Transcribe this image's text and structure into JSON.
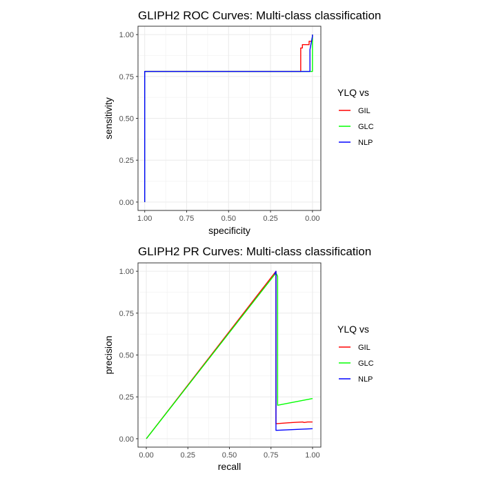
{
  "chart_data": [
    {
      "type": "line",
      "title": "GLIPH2 ROC Curves: Multi-class classification",
      "xlabel": "specificity",
      "ylabel": "sensitivity",
      "x_reversed": true,
      "xlim": [
        1.04,
        -0.05
      ],
      "ylim": [
        -0.05,
        1.05
      ],
      "xticks": [
        1.0,
        0.75,
        0.5,
        0.25,
        0.0
      ],
      "xtick_labels": [
        "1.00",
        "0.75",
        "0.50",
        "0.25",
        "0.00"
      ],
      "yticks": [
        0.0,
        0.25,
        0.5,
        0.75,
        1.0
      ],
      "ytick_labels": [
        "0.00",
        "0.25",
        "0.50",
        "0.75",
        "1.00"
      ],
      "grid": true,
      "legend": {
        "title": "YLQ vs",
        "position": "right"
      },
      "series": [
        {
          "name": "GIL",
          "color": "#ff0000",
          "points": [
            [
              1.0,
              0.0
            ],
            [
              1.0,
              0.78
            ],
            [
              0.07,
              0.78
            ],
            [
              0.07,
              0.92
            ],
            [
              0.06,
              0.92
            ],
            [
              0.06,
              0.94
            ],
            [
              0.02,
              0.94
            ],
            [
              0.02,
              0.96
            ],
            [
              0.0,
              0.96
            ],
            [
              0.0,
              1.0
            ]
          ]
        },
        {
          "name": "GLC",
          "color": "#00ff00",
          "points": [
            [
              1.0,
              0.0
            ],
            [
              1.0,
              0.78
            ],
            [
              0.0,
              0.78
            ],
            [
              0.0,
              1.0
            ]
          ]
        },
        {
          "name": "NLP",
          "color": "#0000ff",
          "points": [
            [
              1.0,
              0.0
            ],
            [
              1.0,
              0.78
            ],
            [
              0.015,
              0.78
            ],
            [
              0.015,
              0.91
            ],
            [
              0.0,
              0.99
            ],
            [
              0.0,
              1.0
            ]
          ]
        }
      ]
    },
    {
      "type": "line",
      "title": "GLIPH2 PR Curves: Multi-class classification",
      "xlabel": "recall",
      "ylabel": "precision",
      "x_reversed": false,
      "xlim": [
        -0.05,
        1.05
      ],
      "ylim": [
        -0.05,
        1.05
      ],
      "xticks": [
        0.0,
        0.25,
        0.5,
        0.75,
        1.0
      ],
      "xtick_labels": [
        "0.00",
        "0.25",
        "0.50",
        "0.75",
        "1.00"
      ],
      "yticks": [
        0.0,
        0.25,
        0.5,
        0.75,
        1.0
      ],
      "ytick_labels": [
        "0.00",
        "0.25",
        "0.50",
        "0.75",
        "1.00"
      ],
      "grid": true,
      "legend": {
        "title": "YLQ vs",
        "position": "right"
      },
      "series": [
        {
          "name": "GIL",
          "color": "#ff0000",
          "points": [
            [
              0.0,
              0.0
            ],
            [
              0.78,
              1.0
            ],
            [
              0.78,
              0.09
            ],
            [
              0.85,
              0.095
            ],
            [
              0.9,
              0.098
            ],
            [
              0.94,
              0.1
            ],
            [
              0.95,
              0.097
            ],
            [
              0.97,
              0.1
            ],
            [
              1.0,
              0.1
            ]
          ]
        },
        {
          "name": "GLC",
          "color": "#00ff00",
          "points": [
            [
              0.0,
              0.0
            ],
            [
              0.78,
              0.99
            ],
            [
              0.79,
              0.97
            ],
            [
              0.79,
              0.2
            ],
            [
              1.0,
              0.24
            ]
          ]
        },
        {
          "name": "NLP",
          "color": "#0000ff",
          "points": [
            [
              0.77,
              0.98
            ],
            [
              0.78,
              1.0
            ],
            [
              0.78,
              0.94
            ],
            [
              0.78,
              0.05
            ],
            [
              1.0,
              0.06
            ]
          ]
        }
      ]
    }
  ]
}
